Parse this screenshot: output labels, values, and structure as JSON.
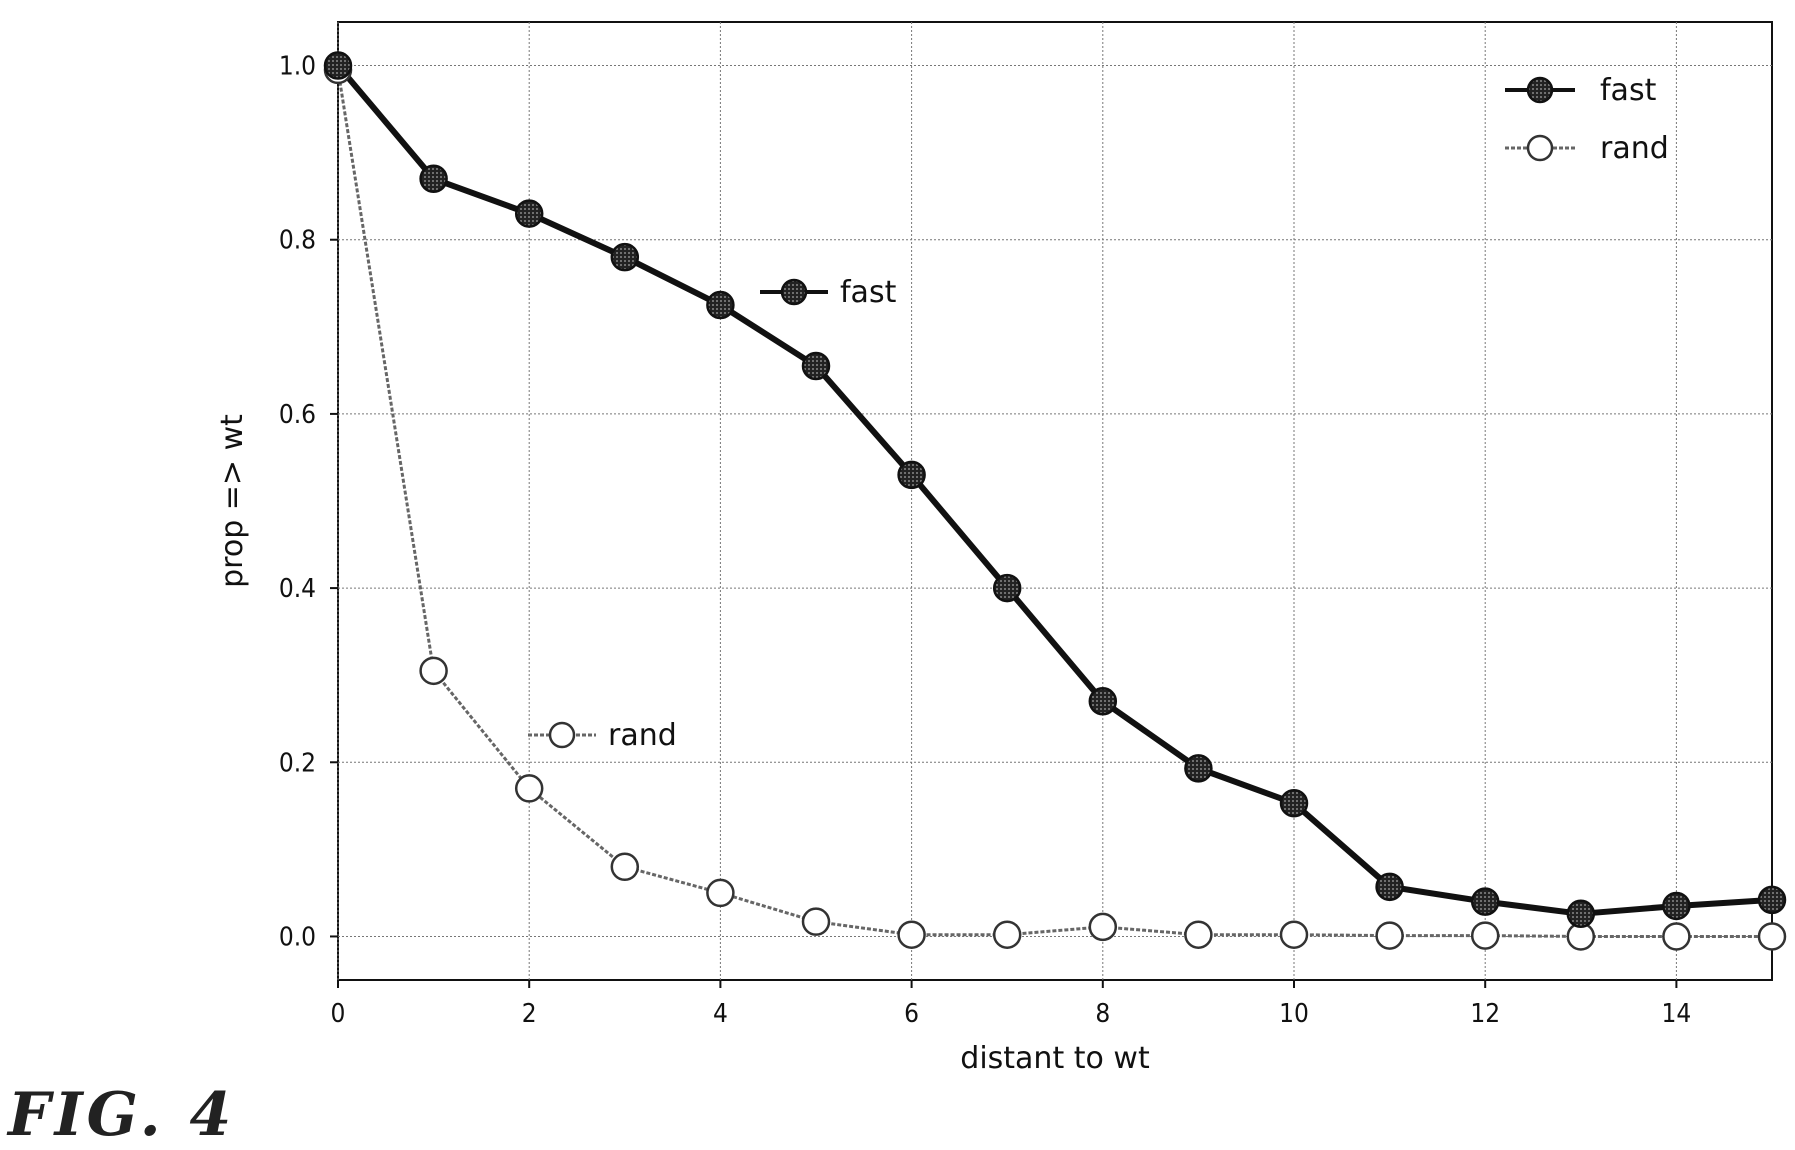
{
  "figure_caption": "FIG. 4",
  "chart_data": {
    "type": "line",
    "title": "",
    "xlabel": "distant to wt",
    "ylabel": "prop => wt",
    "xlim": [
      0,
      15
    ],
    "ylim": [
      -0.05,
      1.05
    ],
    "xticks": [
      0,
      2,
      4,
      6,
      8,
      10,
      12,
      14
    ],
    "xtick_labels": [
      "0",
      "2",
      "4",
      "6",
      "8",
      "10",
      "12",
      "14"
    ],
    "yticks": [
      0.0,
      0.2,
      0.4,
      0.6,
      0.8,
      1.0
    ],
    "ytick_labels": [
      "0.0",
      "0.2",
      "0.4",
      "0.6",
      "0.8",
      "1.0"
    ],
    "grid": true,
    "legend_position": "top-right",
    "x": [
      0,
      1,
      2,
      3,
      4,
      5,
      6,
      7,
      8,
      9,
      10,
      11,
      12,
      13,
      14,
      15
    ],
    "series": [
      {
        "name": "fast",
        "color": "#111111",
        "marker": "filled-circle",
        "values": [
          1.0,
          0.87,
          0.83,
          0.78,
          0.725,
          0.655,
          0.53,
          0.4,
          0.27,
          0.193,
          0.153,
          0.057,
          0.04,
          0.026,
          0.035,
          0.042
        ]
      },
      {
        "name": "rand",
        "color": "#555555",
        "marker": "open-circle",
        "values": [
          0.995,
          0.305,
          0.17,
          0.08,
          0.05,
          0.017,
          0.002,
          0.002,
          0.011,
          0.002,
          0.002,
          0.001,
          0.001,
          0.0,
          0.0,
          0.0
        ]
      }
    ],
    "annotations": [
      {
        "text": "fast",
        "series": "fast"
      },
      {
        "text": "rand",
        "series": "rand"
      }
    ]
  }
}
